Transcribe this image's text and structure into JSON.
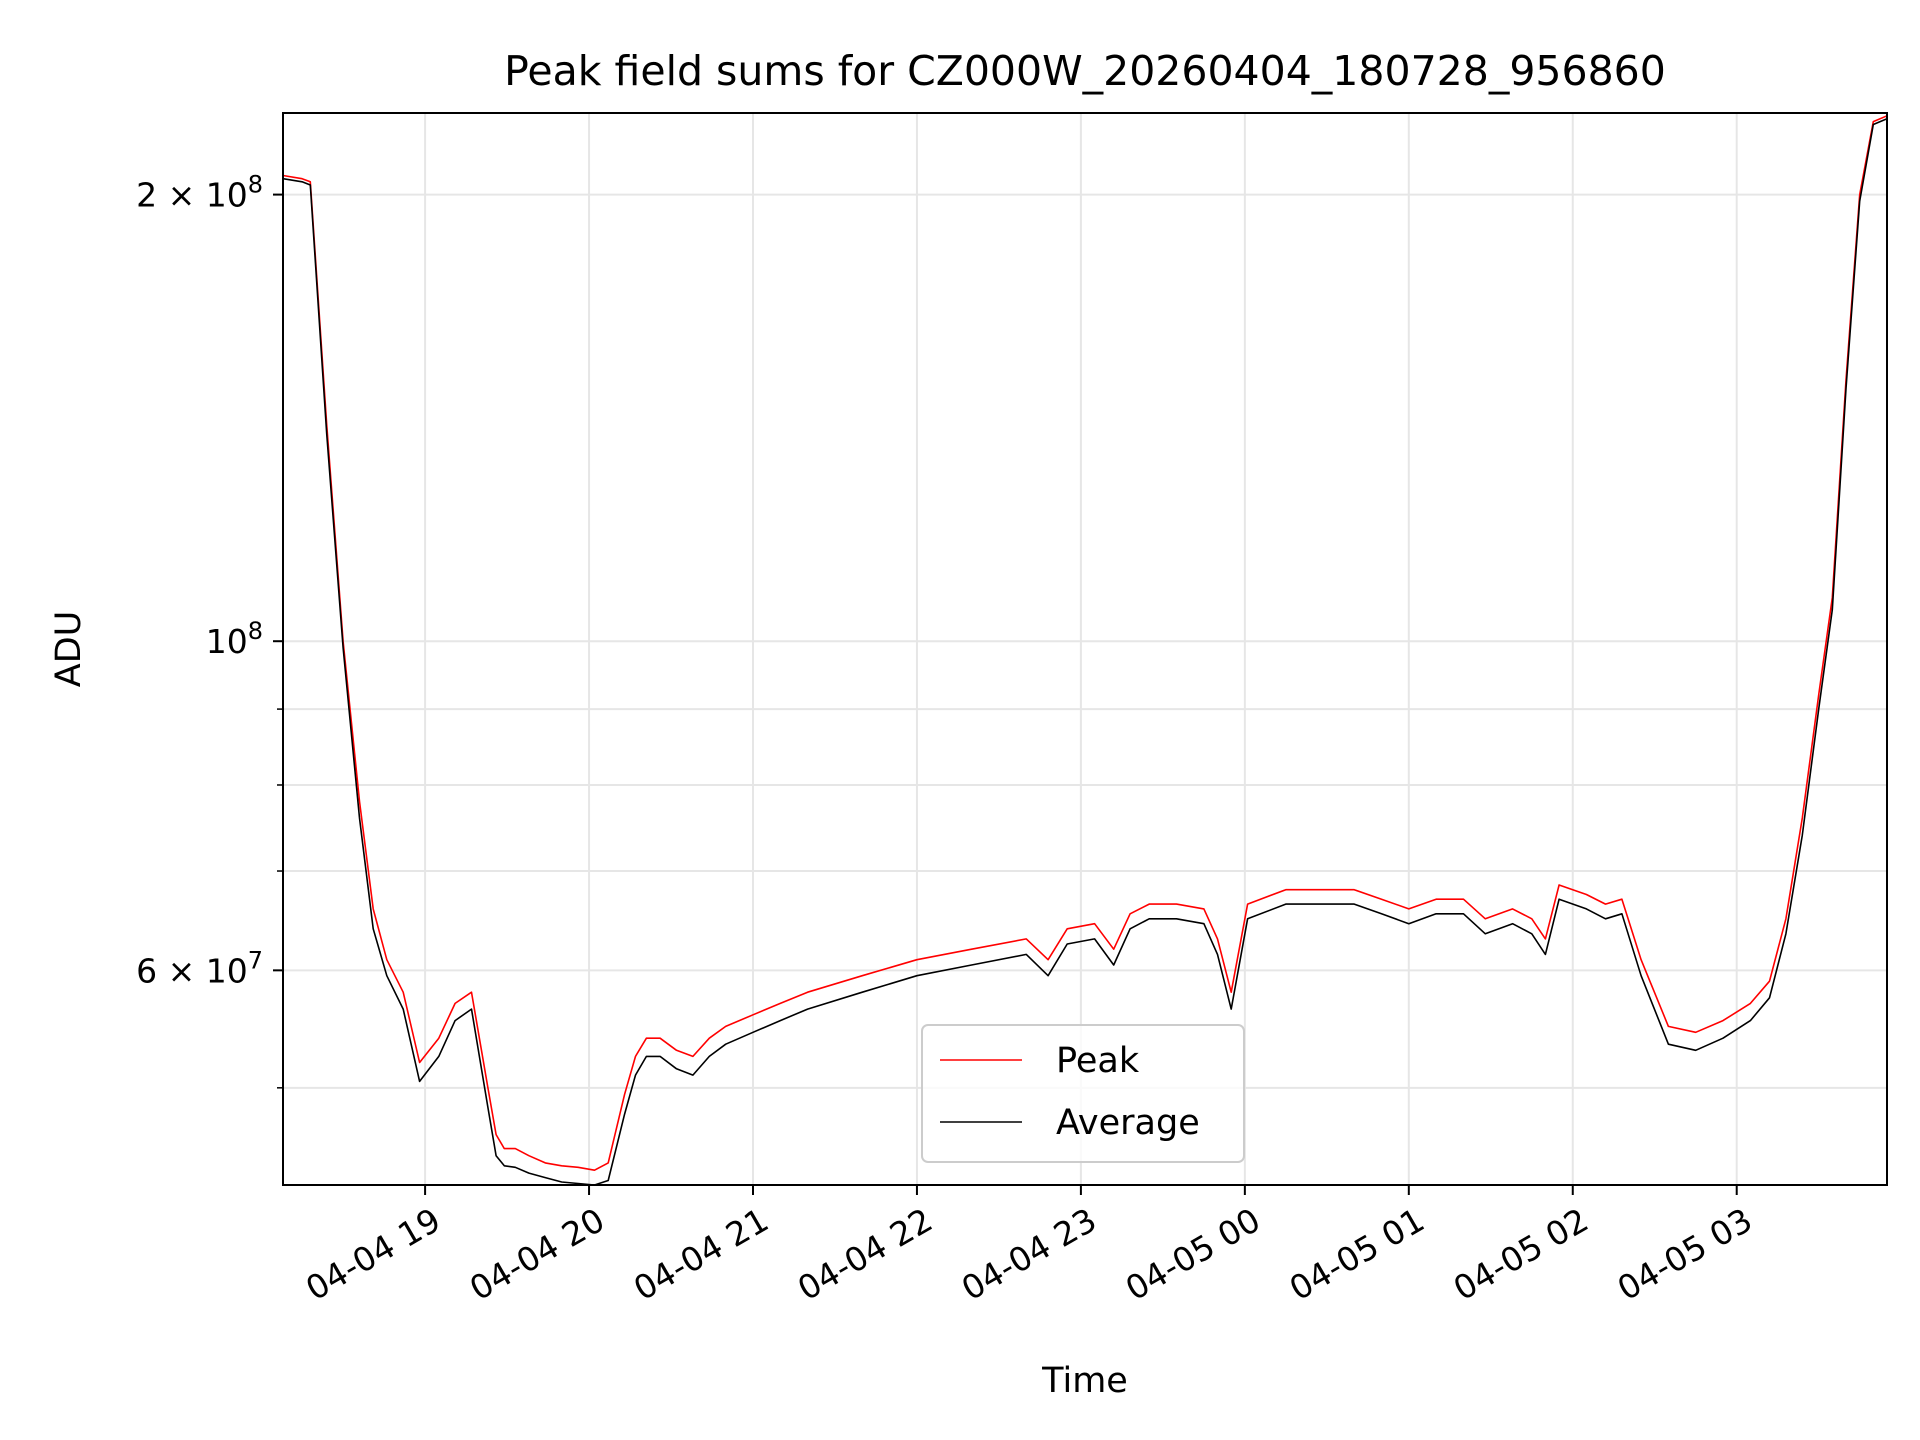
{
  "chart_data": {
    "type": "line",
    "title": "Peak field sums for CZ000W_20260404_180728_956860",
    "xlabel": "Time",
    "ylabel": "ADU",
    "y_scale": "log",
    "ylim": [
      43000000,
      227000000
    ],
    "xlim": [
      "2026-04-04 18:08",
      "2026-04-05 03:55"
    ],
    "x_ticks": [
      {
        "value": "2026-04-04 19:00",
        "label": "04-04 19"
      },
      {
        "value": "2026-04-04 20:00",
        "label": "04-04 20"
      },
      {
        "value": "2026-04-04 21:00",
        "label": "04-04 21"
      },
      {
        "value": "2026-04-04 22:00",
        "label": "04-04 22"
      },
      {
        "value": "2026-04-04 23:00",
        "label": "04-04 23"
      },
      {
        "value": "2026-04-05 00:00",
        "label": "04-05 00"
      },
      {
        "value": "2026-04-05 01:00",
        "label": "04-05 01"
      },
      {
        "value": "2026-04-05 02:00",
        "label": "04-05 02"
      },
      {
        "value": "2026-04-05 03:00",
        "label": "04-05 03"
      }
    ],
    "y_ticks_major": [
      {
        "value": 60000000,
        "mantissa": "6",
        "exp": "7",
        "has_mantissa": true
      },
      {
        "value": 100000000,
        "mantissa": "",
        "exp": "8",
        "has_mantissa": false
      },
      {
        "value": 200000000,
        "mantissa": "2",
        "exp": "8",
        "has_mantissa": true
      }
    ],
    "y_ticks_minor": [
      50000000,
      70000000,
      80000000,
      90000000
    ],
    "grid": true,
    "legend": {
      "position": "lower-center"
    },
    "series": [
      {
        "name": "Peak",
        "color": "#ff0000"
      },
      {
        "name": "Average",
        "color": "#000000"
      }
    ],
    "x": [
      "2026-04-04 18:08",
      "2026-04-04 18:15",
      "2026-04-04 18:18",
      "2026-04-04 18:24",
      "2026-04-04 18:30",
      "2026-04-04 18:36",
      "2026-04-04 18:41",
      "2026-04-04 18:46",
      "2026-04-04 18:52",
      "2026-04-04 18:58",
      "2026-04-04 19:05",
      "2026-04-04 19:11",
      "2026-04-04 19:17",
      "2026-04-04 19:23",
      "2026-04-04 19:26",
      "2026-04-04 19:29",
      "2026-04-04 19:33",
      "2026-04-04 19:38",
      "2026-04-04 19:44",
      "2026-04-04 19:50",
      "2026-04-04 19:56",
      "2026-04-04 20:02",
      "2026-04-04 20:07",
      "2026-04-04 20:13",
      "2026-04-04 20:17",
      "2026-04-04 20:21",
      "2026-04-04 20:26",
      "2026-04-04 20:32",
      "2026-04-04 20:38",
      "2026-04-04 20:44",
      "2026-04-04 20:50",
      "2026-04-04 21:00",
      "2026-04-04 21:10",
      "2026-04-04 21:20",
      "2026-04-04 21:40",
      "2026-04-04 22:00",
      "2026-04-04 22:20",
      "2026-04-04 22:40",
      "2026-04-04 22:48",
      "2026-04-04 22:55",
      "2026-04-04 23:05",
      "2026-04-04 23:12",
      "2026-04-04 23:18",
      "2026-04-04 23:25",
      "2026-04-04 23:35",
      "2026-04-04 23:45",
      "2026-04-04 23:50",
      "2026-04-04 23:55",
      "2026-04-05 00:01",
      "2026-04-05 00:15",
      "2026-04-05 00:30",
      "2026-04-05 00:40",
      "2026-04-05 00:50",
      "2026-04-05 01:00",
      "2026-04-05 01:10",
      "2026-04-05 01:20",
      "2026-04-05 01:28",
      "2026-04-05 01:38",
      "2026-04-05 01:45",
      "2026-04-05 01:50",
      "2026-04-05 01:55",
      "2026-04-05 02:05",
      "2026-04-05 02:12",
      "2026-04-05 02:18",
      "2026-04-05 02:25",
      "2026-04-05 02:35",
      "2026-04-05 02:45",
      "2026-04-05 02:55",
      "2026-04-05 03:05",
      "2026-04-05 03:12",
      "2026-04-05 03:18",
      "2026-04-05 03:24",
      "2026-04-05 03:30",
      "2026-04-05 03:35",
      "2026-04-05 03:40",
      "2026-04-05 03:45",
      "2026-04-05 03:50",
      "2026-04-05 03:55"
    ],
    "peak": [
      206000000,
      205000000,
      204000000,
      140000000,
      100000000,
      78000000,
      66000000,
      61000000,
      58000000,
      52000000,
      54000000,
      57000000,
      58000000,
      50000000,
      46500000,
      45500000,
      45500000,
      45000000,
      44500000,
      44300000,
      44200000,
      44000000,
      44500000,
      49500000,
      52500000,
      54000000,
      54000000,
      53000000,
      52500000,
      54000000,
      55000000,
      56000000,
      57000000,
      58000000,
      59500000,
      61000000,
      62000000,
      63000000,
      61000000,
      64000000,
      64500000,
      62000000,
      65500000,
      66500000,
      66500000,
      66000000,
      63000000,
      58000000,
      66500000,
      68000000,
      68000000,
      68000000,
      67000000,
      66000000,
      67000000,
      67000000,
      65000000,
      66000000,
      65000000,
      63000000,
      68500000,
      67500000,
      66500000,
      67000000,
      61000000,
      55000000,
      54500000,
      55500000,
      57000000,
      59000000,
      65000000,
      76000000,
      92000000,
      107000000,
      150000000,
      200000000,
      224000000,
      226000000
    ],
    "average": [
      205000000,
      204000000,
      203000000,
      138000000,
      99000000,
      76000000,
      64000000,
      59500000,
      56500000,
      50500000,
      52500000,
      55500000,
      56500000,
      48500000,
      45000000,
      44300000,
      44200000,
      43800000,
      43500000,
      43200000,
      43100000,
      43000000,
      43300000,
      48000000,
      51000000,
      52500000,
      52500000,
      51500000,
      51000000,
      52500000,
      53500000,
      54500000,
      55500000,
      56500000,
      58000000,
      59500000,
      60500000,
      61500000,
      59500000,
      62500000,
      63000000,
      60500000,
      64000000,
      65000000,
      65000000,
      64500000,
      61500000,
      56500000,
      65000000,
      66500000,
      66500000,
      66500000,
      65500000,
      64500000,
      65500000,
      65500000,
      63500000,
      64500000,
      63500000,
      61500000,
      67000000,
      66000000,
      65000000,
      65500000,
      59500000,
      53500000,
      53000000,
      54000000,
      55500000,
      57500000,
      63500000,
      74000000,
      90000000,
      105000000,
      148000000,
      198000000,
      223000000,
      225000000
    ]
  }
}
